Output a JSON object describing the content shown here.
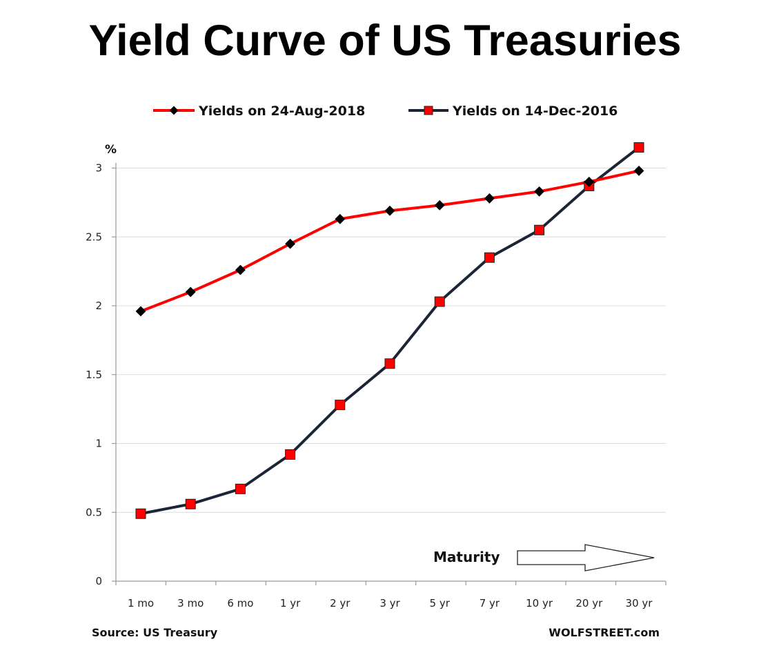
{
  "title": "Yield Curve of US Treasuries",
  "chart_data": {
    "type": "line",
    "title": "Yield Curve of US Treasuries",
    "ylabel": "%",
    "xlabel": "",
    "categories": [
      "1 mo",
      "3 mo",
      "6 mo",
      "1 yr",
      "2 yr",
      "3 yr",
      "5 yr",
      "7 yr",
      "10 yr",
      "20 yr",
      "30 yr"
    ],
    "ylim": [
      0,
      3.15
    ],
    "yticks": [
      0,
      0.5,
      1,
      1.5,
      2,
      2.5,
      3
    ],
    "ytick_labels": [
      "0",
      "0.5",
      "1",
      "1.5",
      "2",
      "2.5",
      "3"
    ],
    "grid": "horizontal",
    "legend_position": "top",
    "series": [
      {
        "name": "Yields on 24-Aug-2018",
        "color": "#ff0000",
        "marker": "diamond",
        "marker_color": "#000000",
        "values": [
          1.96,
          2.1,
          2.26,
          2.45,
          2.63,
          2.69,
          2.73,
          2.78,
          2.83,
          2.9,
          2.98
        ]
      },
      {
        "name": "Yields on 14-Dec-2016",
        "color": "#1b2535",
        "marker": "square",
        "marker_color": "#ff0000",
        "values": [
          0.49,
          0.56,
          0.67,
          0.92,
          1.28,
          1.58,
          2.03,
          2.35,
          2.55,
          2.87,
          3.15
        ]
      }
    ],
    "annotations": {
      "maturity": "Maturity",
      "source": "Source: US Treasury",
      "brand": "WOLFSTREET.com"
    }
  }
}
